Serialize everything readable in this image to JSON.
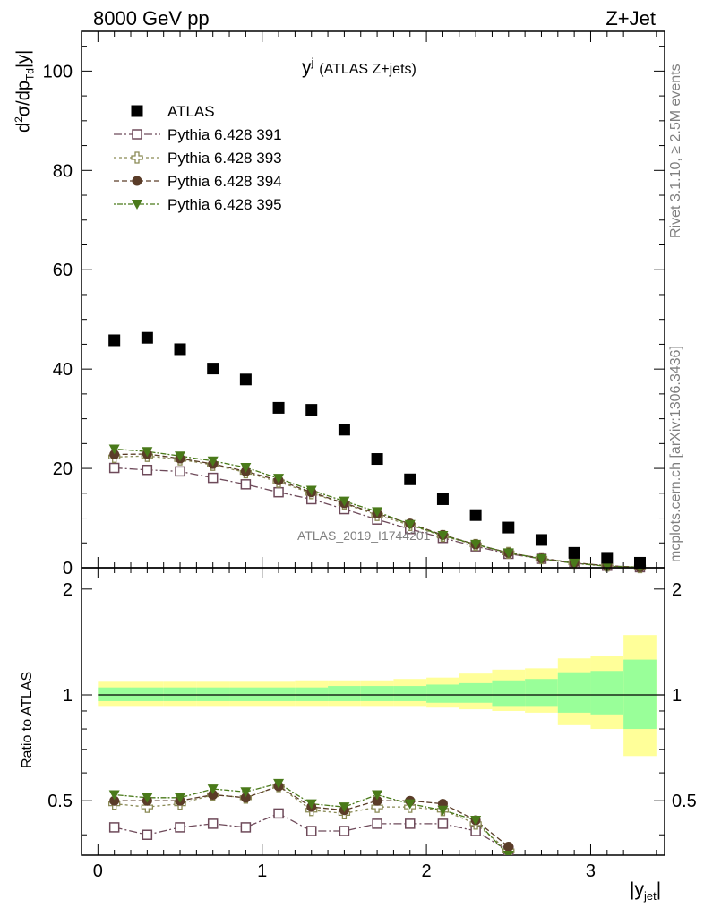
{
  "header": {
    "energy_label": "8000 GeV pp",
    "process_label": "Z+Jet",
    "plot_title_main": "y",
    "plot_title_sup": "j",
    "plot_title_sub": "(ATLAS Z+jets)"
  },
  "side_labels": {
    "rivet": "Rivet 3.1.10, ≥ 2.5M events",
    "mcplots": "mcplots.cern.ch [arXiv:1306.3436]"
  },
  "watermark": "ATLAS_2019_I1744201",
  "colors": {
    "atlas": "#000000",
    "py391": "#6e4a5a",
    "py393": "#8a8a55",
    "py394": "#5a3c28",
    "py395": "#4a7a1a",
    "band_outer": "#ffff99",
    "band_inner": "#99ff99"
  },
  "chart_data": [
    {
      "type": "scatter",
      "name": "main",
      "title": "y^j (ATLAS Z+jets)",
      "xlabel": "|y_jet|",
      "ylabel": "d²σ/dp_Td|y|",
      "xlim": [
        -0.1,
        3.45
      ],
      "ylim": [
        0,
        108
      ],
      "yticks": [
        0,
        20,
        40,
        60,
        80,
        100
      ],
      "legend_position": "top-left",
      "x": [
        0.1,
        0.3,
        0.5,
        0.7,
        0.9,
        1.1,
        1.3,
        1.5,
        1.7,
        1.9,
        2.1,
        2.3,
        2.5,
        2.7,
        2.9,
        3.1,
        3.3
      ],
      "series": [
        {
          "name": "ATLAS",
          "key": "atlas",
          "marker": "square-filled",
          "values": [
            45.8,
            46.3,
            44.0,
            40.1,
            37.9,
            32.2,
            31.8,
            27.8,
            21.9,
            17.8,
            13.8,
            10.6,
            8.1,
            5.6,
            3.0,
            2.0,
            1.0
          ]
        },
        {
          "name": "Pythia 6.428 391",
          "key": "py391",
          "marker": "square-open",
          "values": [
            20.1,
            19.7,
            19.4,
            18.1,
            16.8,
            15.2,
            13.8,
            11.8,
            9.7,
            7.8,
            6.0,
            4.3,
            2.8,
            1.8,
            0.9,
            0.4,
            0.1
          ]
        },
        {
          "name": "Pythia 6.428 393",
          "key": "py393",
          "marker": "cross-open",
          "values": [
            22.3,
            22.5,
            21.8,
            20.7,
            19.2,
            17.3,
            15.0,
            12.9,
            10.6,
            8.6,
            6.4,
            4.6,
            3.0,
            1.9,
            1.0,
            0.4,
            0.1
          ]
        },
        {
          "name": "Pythia 6.428 394",
          "key": "py394",
          "marker": "circle-filled",
          "values": [
            22.8,
            22.9,
            22.0,
            20.9,
            19.4,
            17.6,
            15.2,
            13.0,
            10.9,
            8.9,
            6.6,
            4.7,
            3.0,
            1.9,
            1.0,
            0.4,
            0.1
          ]
        },
        {
          "name": "Pythia 6.428 395",
          "key": "py395",
          "marker": "triangle-down-filled",
          "values": [
            23.9,
            23.4,
            22.5,
            21.5,
            20.2,
            18.0,
            15.6,
            13.4,
            11.3,
            8.7,
            6.5,
            4.7,
            3.0,
            1.8,
            0.9,
            0.3,
            0.1
          ]
        }
      ]
    },
    {
      "type": "scatter",
      "name": "ratio",
      "xlabel": "|y_jet|",
      "ylabel": "Ratio to ATLAS",
      "xlim": [
        -0.1,
        3.45
      ],
      "ylim": [
        0.35,
        2.3
      ],
      "yscale": "log",
      "yticks": [
        0.5,
        1,
        2
      ],
      "xticks": [
        0,
        1,
        2,
        3
      ],
      "x": [
        0.1,
        0.3,
        0.5,
        0.7,
        0.9,
        1.1,
        1.3,
        1.5,
        1.7,
        1.9,
        2.1,
        2.3,
        2.5
      ],
      "band_edges": [
        0.0,
        0.2,
        0.4,
        0.6,
        0.8,
        1.0,
        1.2,
        1.4,
        1.6,
        1.8,
        2.0,
        2.2,
        2.4,
        2.6,
        2.8,
        3.0,
        3.2,
        3.4
      ],
      "band_inner": [
        [
          0.96,
          1.05
        ],
        [
          0.96,
          1.05
        ],
        [
          0.96,
          1.05
        ],
        [
          0.96,
          1.05
        ],
        [
          0.96,
          1.05
        ],
        [
          0.96,
          1.05
        ],
        [
          0.96,
          1.05
        ],
        [
          0.96,
          1.06
        ],
        [
          0.96,
          1.06
        ],
        [
          0.96,
          1.06
        ],
        [
          0.95,
          1.07
        ],
        [
          0.95,
          1.08
        ],
        [
          0.93,
          1.1
        ],
        [
          0.93,
          1.11
        ],
        [
          0.89,
          1.16
        ],
        [
          0.88,
          1.17
        ],
        [
          0.8,
          1.26
        ]
      ],
      "band_outer": [
        [
          0.93,
          1.09
        ],
        [
          0.93,
          1.09
        ],
        [
          0.93,
          1.09
        ],
        [
          0.93,
          1.09
        ],
        [
          0.93,
          1.09
        ],
        [
          0.93,
          1.09
        ],
        [
          0.93,
          1.1
        ],
        [
          0.93,
          1.1
        ],
        [
          0.93,
          1.1
        ],
        [
          0.93,
          1.11
        ],
        [
          0.92,
          1.12
        ],
        [
          0.91,
          1.15
        ],
        [
          0.9,
          1.18
        ],
        [
          0.89,
          1.19
        ],
        [
          0.82,
          1.27
        ],
        [
          0.8,
          1.29
        ],
        [
          0.67,
          1.48
        ]
      ],
      "series": [
        {
          "name": "Pythia 6.428 391",
          "key": "py391",
          "marker": "square-open",
          "values": [
            0.42,
            0.4,
            0.42,
            0.43,
            0.42,
            0.46,
            0.41,
            0.41,
            0.43,
            0.43,
            0.43,
            0.41,
            0.36
          ]
        },
        {
          "name": "Pythia 6.428 393",
          "key": "py393",
          "marker": "cross-open",
          "values": [
            0.49,
            0.48,
            0.49,
            0.52,
            0.51,
            0.55,
            0.47,
            0.46,
            0.48,
            0.48,
            0.47,
            0.43,
            0.36
          ]
        },
        {
          "name": "Pythia 6.428 394",
          "key": "py394",
          "marker": "circle-filled",
          "values": [
            0.5,
            0.5,
            0.5,
            0.52,
            0.51,
            0.55,
            0.48,
            0.47,
            0.5,
            0.5,
            0.49,
            0.44,
            0.37
          ]
        },
        {
          "name": "Pythia 6.428 395",
          "key": "py395",
          "marker": "triangle-down-filled",
          "values": [
            0.52,
            0.51,
            0.51,
            0.54,
            0.53,
            0.56,
            0.49,
            0.48,
            0.52,
            0.49,
            0.47,
            0.44,
            0.35
          ]
        }
      ]
    }
  ]
}
